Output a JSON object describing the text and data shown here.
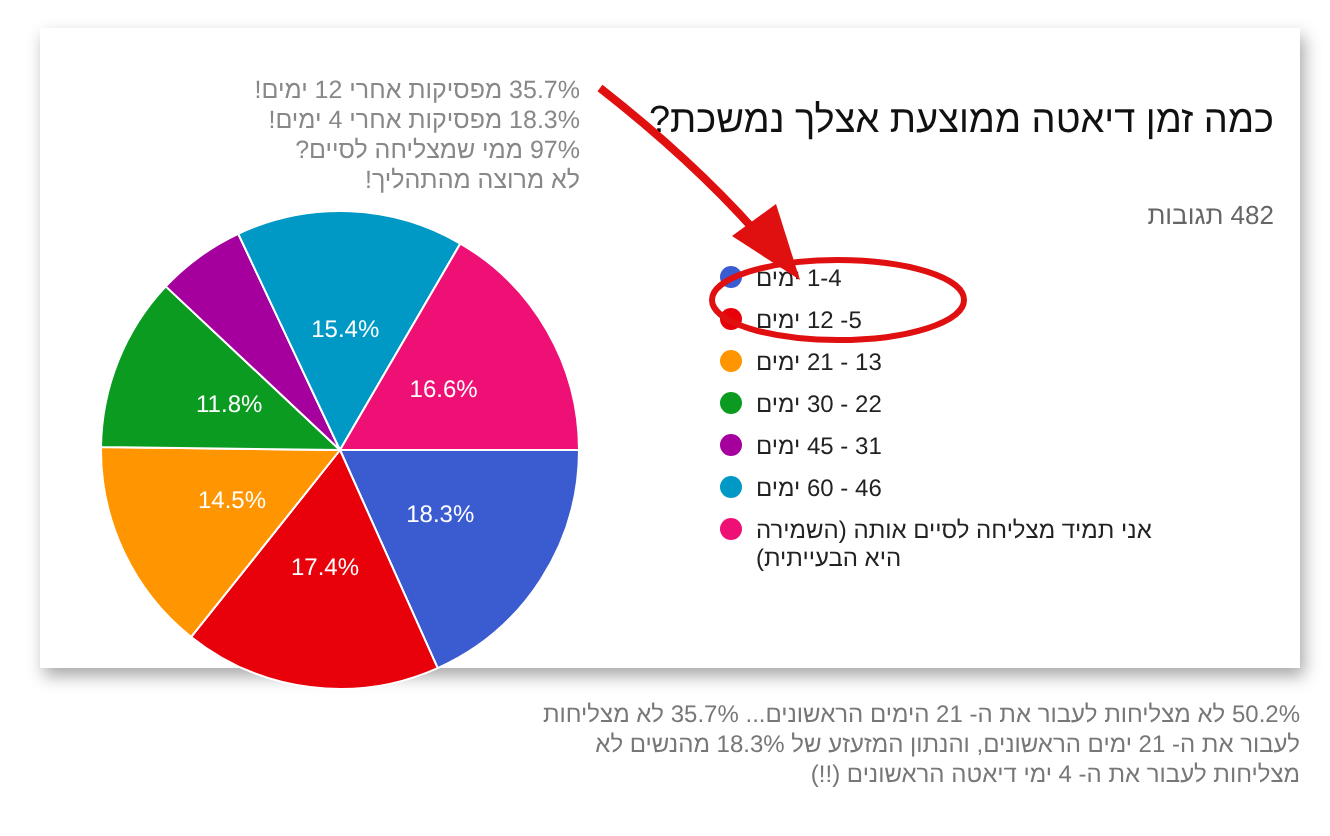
{
  "chart_data": {
    "type": "pie",
    "title": "כמה זמן דיאטה ממוצעת אצלך נמשכת?",
    "subtitle": "482 תגובות",
    "categories": [
      "1-4 ימים",
      "5- 12 ימים",
      "13 - 21 ימים",
      "22 - 30 ימים",
      "31 - 45 ימים",
      "46 - 60 ימים",
      "אני תמיד מצליחה לסיים אותה (השמירה היא הבעייתית)"
    ],
    "values": [
      18.3,
      17.4,
      14.5,
      11.8,
      6.0,
      15.4,
      16.6
    ],
    "value_labels": [
      "18.3%",
      "17.4%",
      "14.5%",
      "11.8%",
      null,
      "15.4%",
      "16.6%"
    ],
    "colors": [
      "#3b5bd0",
      "#e8000b",
      "#ff9500",
      "#0b9b21",
      "#a5009e",
      "#0099c6",
      "#ef1076"
    ],
    "legend": "right",
    "annotations": [
      "35.7% מפסיקות אחרי 12 ימים!",
      "18.3% מפסיקות אחרי 4 ימים!",
      "97% ממי שמצליחה לסיים?",
      "לא מרוצה מהתהליך!",
      "50.2% לא מצליחות לעבור את ה- 21 הימים הראשונים... 35.7% לא מצליחות לעבור את ה- 21 ימים הראשונים, והנתון המזעזע של 18.3% מהנשים לא מצליחות לעבור את ה- 4 ימי דיאטה הראשונים (!!)"
    ]
  }
}
